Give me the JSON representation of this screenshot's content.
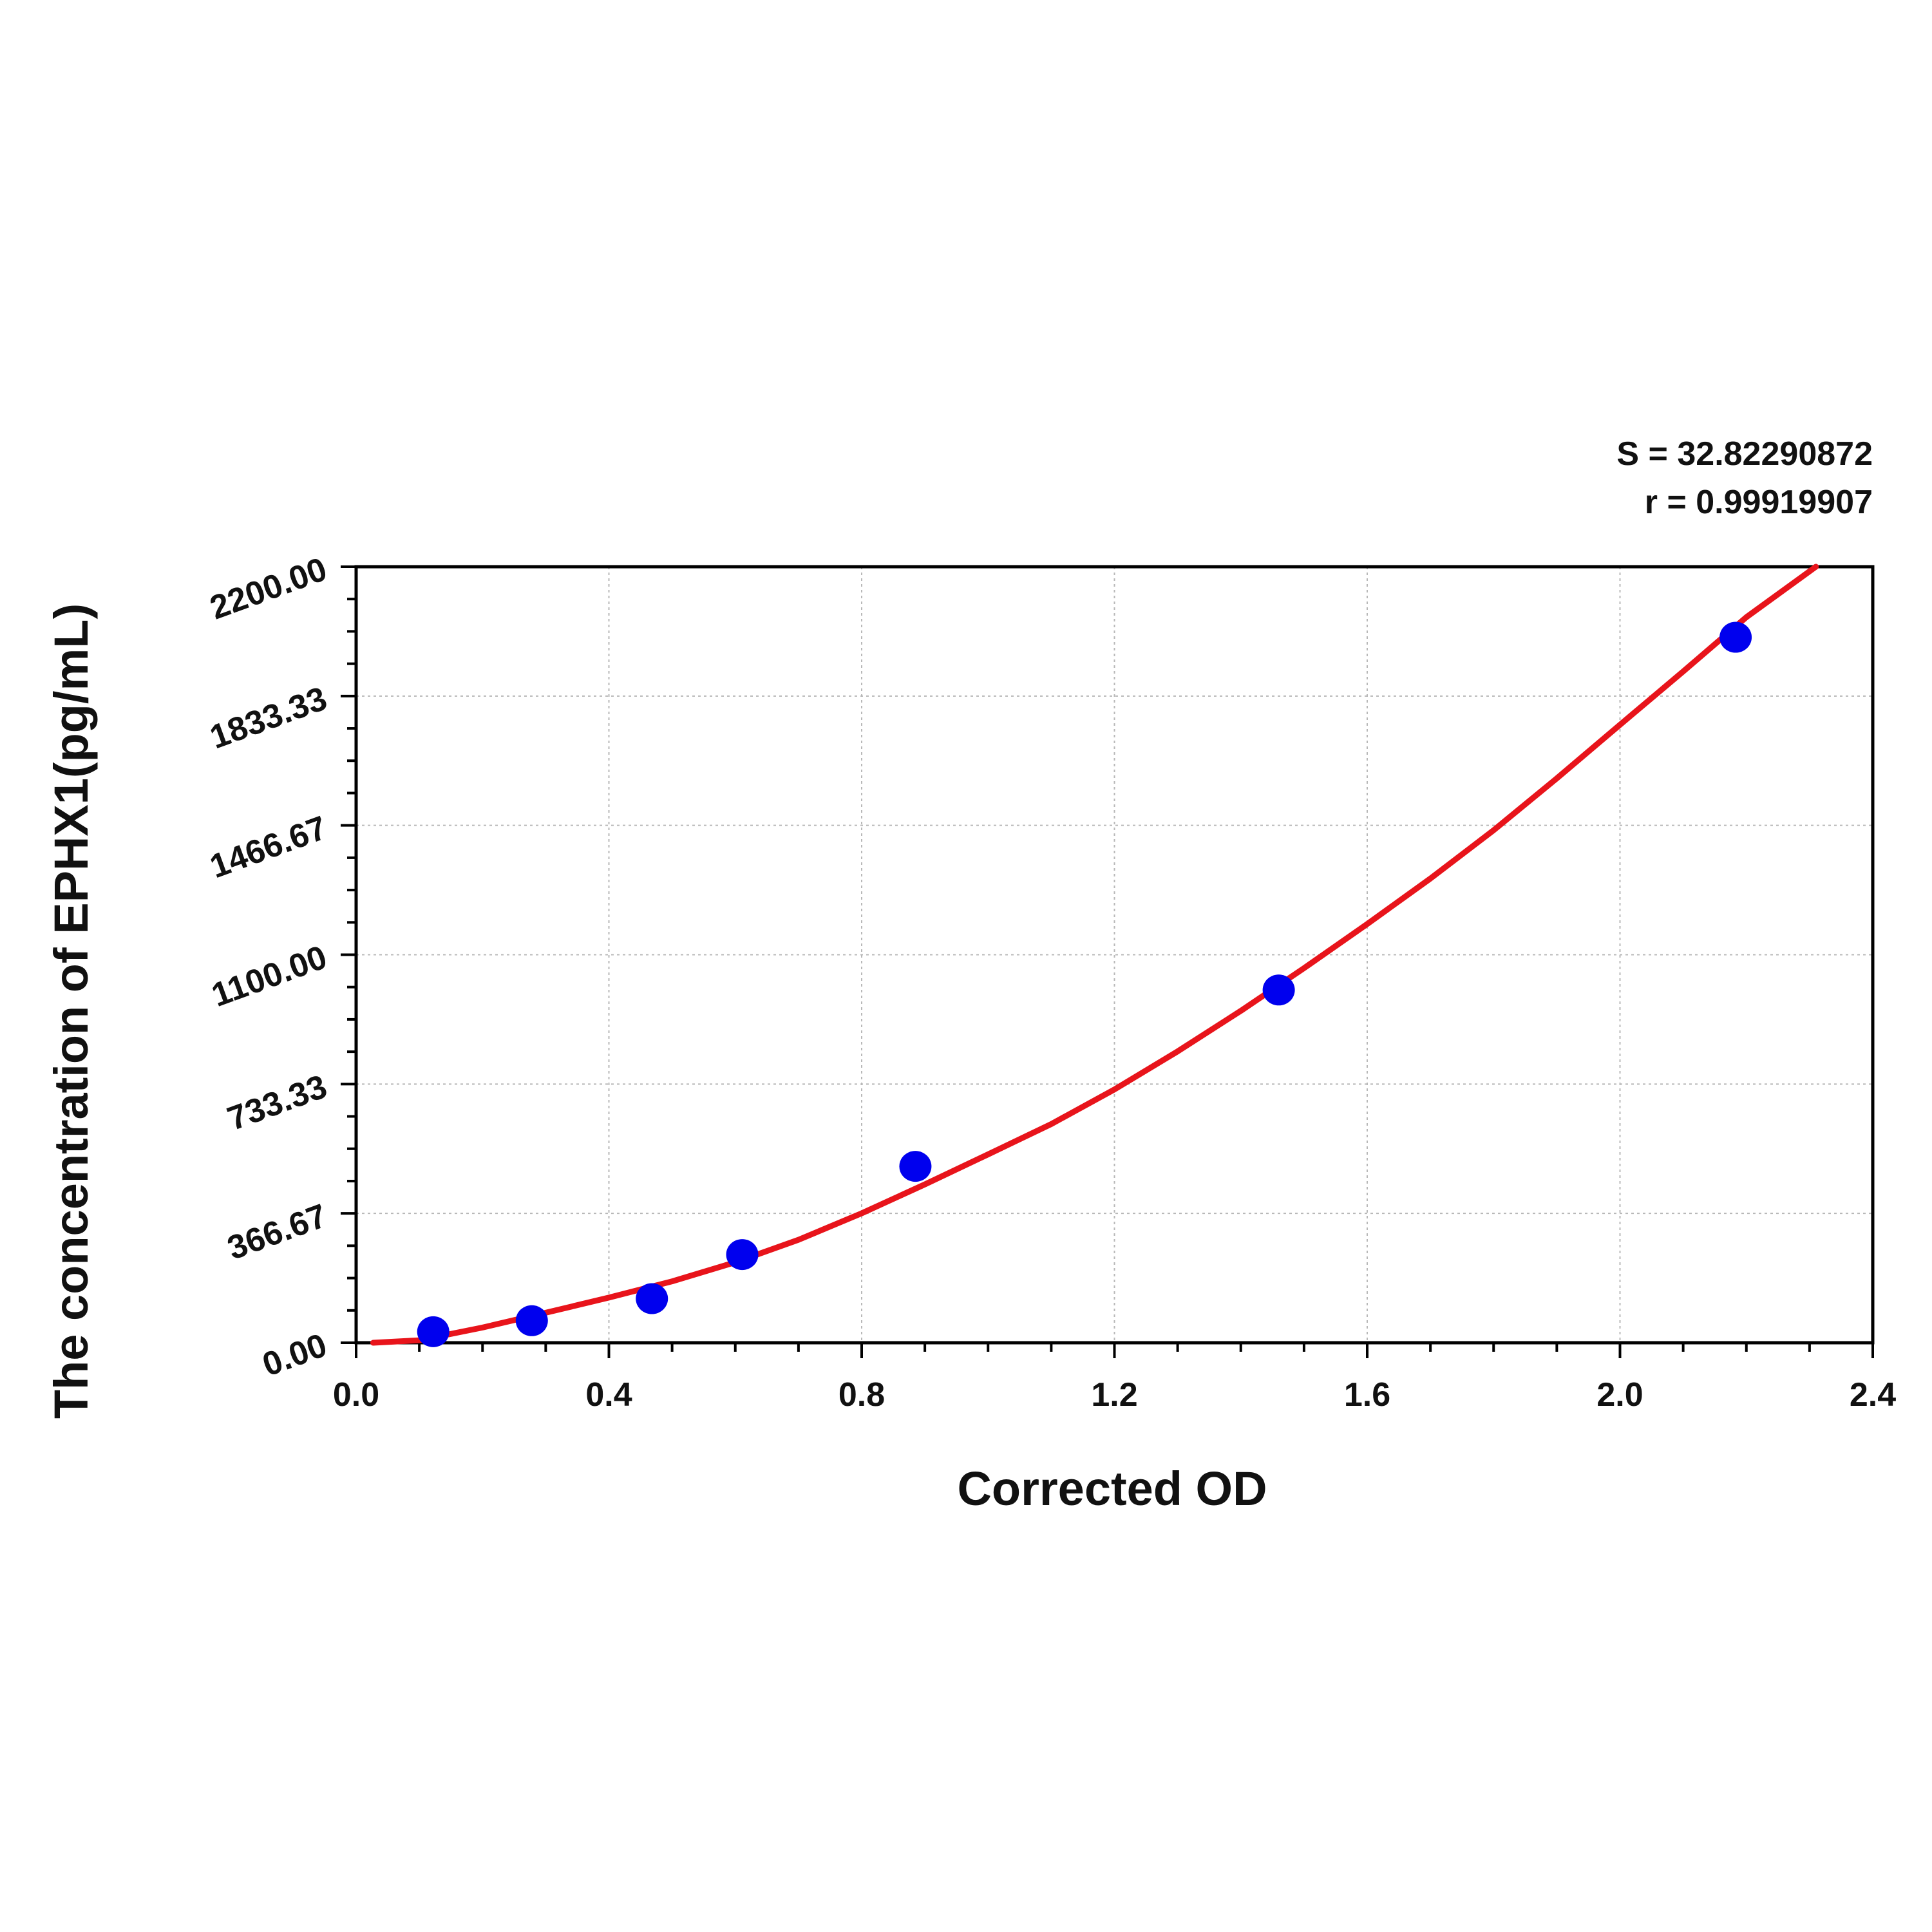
{
  "chart_data": {
    "type": "scatter",
    "xlabel": "Corrected OD",
    "ylabel": "The concentration of EPHX1(pg/mL)",
    "xlim": [
      0.0,
      2.4
    ],
    "ylim": [
      0.0,
      2200.0
    ],
    "x_ticks": [
      "0.0",
      "0.4",
      "0.8",
      "1.2",
      "1.6",
      "2.0",
      "2.4"
    ],
    "y_ticks": [
      "0.00",
      "366.67",
      "733.33",
      "1100.00",
      "1466.67",
      "1833.33",
      "2200.00"
    ],
    "grid": true,
    "annotations": [
      "S = 32.82290872",
      "r = 0.99919907"
    ],
    "series": [
      {
        "kind": "points",
        "color": "#0000ee",
        "x": [
          0.122,
          0.278,
          0.468,
          0.611,
          0.885,
          1.46,
          2.183
        ],
        "y": [
          31.25,
          62.5,
          125,
          250,
          500,
          1000,
          2000
        ]
      },
      {
        "kind": "fit-curve",
        "color": "#e8141b",
        "x": [
          0.027,
          0.1,
          0.2,
          0.3,
          0.4,
          0.5,
          0.6,
          0.7,
          0.8,
          0.9,
          1.0,
          1.1,
          1.2,
          1.3,
          1.4,
          1.5,
          1.6,
          1.7,
          1.8,
          1.9,
          2.0,
          2.1,
          2.2,
          2.31
        ],
        "y": [
          0,
          7,
          43,
          85,
          128,
          174,
          228,
          292,
          367,
          449,
          534,
          620,
          718,
          826,
          941,
          1062,
          1187,
          1316,
          1453,
          1600,
          1752,
          1903,
          2057,
          2200
        ]
      }
    ]
  }
}
